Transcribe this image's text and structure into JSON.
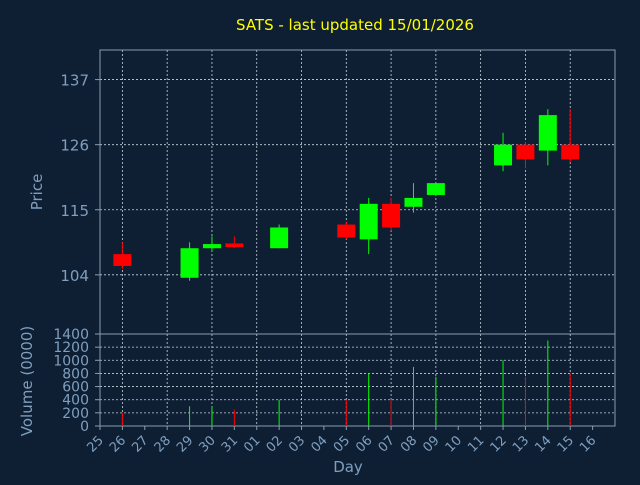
{
  "chart_data": {
    "type": "candlestick",
    "title": "SATS - last updated 15/01/2026",
    "xlabel": "Day",
    "price": {
      "ylabel": "Price",
      "ylim": [
        94,
        142
      ],
      "yticks": [
        104,
        115,
        126,
        137
      ],
      "grid": true
    },
    "volume": {
      "ylabel": "Volume (0000)",
      "ylim": [
        0,
        1400
      ],
      "yticks": [
        0,
        200,
        400,
        600,
        800,
        1000,
        1200,
        1400
      ],
      "grid": true
    },
    "x_tick_labels": [
      "25",
      "26",
      "27",
      "28",
      "29",
      "30",
      "31",
      "01",
      "02",
      "03",
      "04",
      "05",
      "06",
      "07",
      "08",
      "09",
      "10",
      "11",
      "12",
      "13",
      "14",
      "15",
      "16"
    ],
    "up_color": "#00ff00",
    "down_color": "#ff0000",
    "candles": [
      {
        "day": "26",
        "index": 1,
        "open": 107.5,
        "close": 105.5,
        "high": 109.5,
        "low": 105.0,
        "volume": 200
      },
      {
        "day": "29",
        "index": 4,
        "open": 103.5,
        "close": 108.5,
        "high": 109.5,
        "low": 103.0,
        "volume": 300
      },
      {
        "day": "30",
        "index": 5,
        "open": 108.5,
        "close": 109.2,
        "high": 110.5,
        "low": 108.0,
        "volume": 300
      },
      {
        "day": "31",
        "index": 6,
        "open": 109.3,
        "close": 108.7,
        "high": 110.5,
        "low": 108.5,
        "volume": 250
      },
      {
        "day": "02",
        "index": 8,
        "open": 108.5,
        "close": 112.0,
        "high": 112.5,
        "low": 108.5,
        "volume": 400
      },
      {
        "day": "05",
        "index": 11,
        "open": 112.5,
        "close": 110.3,
        "high": 113.0,
        "low": 110.0,
        "volume": 400
      },
      {
        "day": "06",
        "index": 12,
        "open": 110.0,
        "close": 116.0,
        "high": 117.0,
        "low": 107.5,
        "volume": 800
      },
      {
        "day": "07",
        "index": 13,
        "open": 116.0,
        "close": 112.0,
        "high": 117.0,
        "low": 111.5,
        "volume": 400
      },
      {
        "day": "08",
        "index": 14,
        "open": 115.5,
        "close": 117.0,
        "high": 119.5,
        "low": 114.5,
        "volume": 900
      },
      {
        "day": "09",
        "index": 15,
        "open": 117.5,
        "close": 119.5,
        "high": 119.5,
        "low": 117.5,
        "volume": 750
      },
      {
        "day": "12",
        "index": 18,
        "open": 122.5,
        "close": 126.0,
        "high": 128.0,
        "low": 121.5,
        "volume": 1000
      },
      {
        "day": "13",
        "index": 19,
        "open": 126.0,
        "close": 123.5,
        "high": 126.5,
        "low": 122.0,
        "volume": 750
      },
      {
        "day": "14",
        "index": 20,
        "open": 125.0,
        "close": 131.0,
        "high": 132.0,
        "low": 122.5,
        "volume": 1300
      },
      {
        "day": "15",
        "index": 21,
        "open": 126.0,
        "close": 123.5,
        "high": 132.0,
        "low": 123.0,
        "volume": 800
      }
    ]
  }
}
